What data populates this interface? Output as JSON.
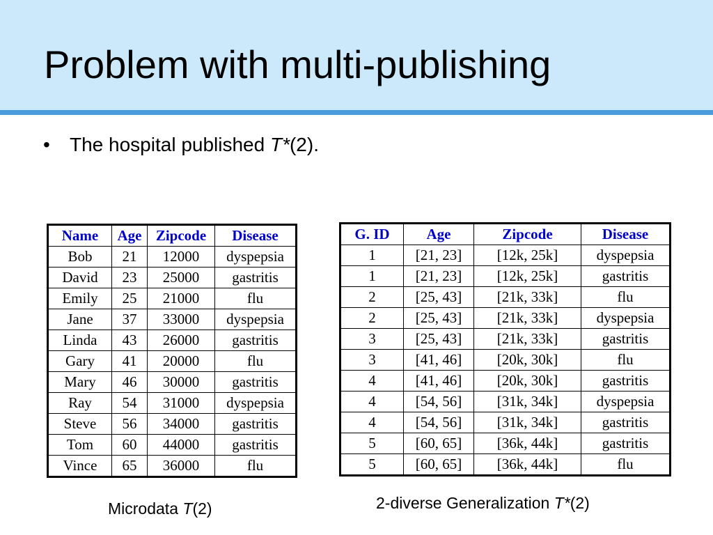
{
  "slide": {
    "title": "Problem with multi-publishing",
    "bullet": {
      "marker": "•",
      "prefix": "The hospital published ",
      "em": "T*",
      "suffix": "(2)."
    }
  },
  "left_table": {
    "headers": [
      "Name",
      "Age",
      "Zipcode",
      "Disease"
    ],
    "rows": [
      [
        "Bob",
        "21",
        "12000",
        "dyspepsia"
      ],
      [
        "David",
        "23",
        "25000",
        "gastritis"
      ],
      [
        "Emily",
        "25",
        "21000",
        "flu"
      ],
      [
        "Jane",
        "37",
        "33000",
        "dyspepsia"
      ],
      [
        "Linda",
        "43",
        "26000",
        "gastritis"
      ],
      [
        "Gary",
        "41",
        "20000",
        "flu"
      ],
      [
        "Mary",
        "46",
        "30000",
        "gastritis"
      ],
      [
        "Ray",
        "54",
        "31000",
        "dyspepsia"
      ],
      [
        "Steve",
        "56",
        "34000",
        "gastritis"
      ],
      [
        "Tom",
        "60",
        "44000",
        "gastritis"
      ],
      [
        "Vince",
        "65",
        "36000",
        "flu"
      ]
    ],
    "caption": {
      "prefix": "Microdata ",
      "em": "T",
      "suffix": "(2)"
    }
  },
  "right_table": {
    "headers": [
      "G. ID",
      "Age",
      "Zipcode",
      "Disease"
    ],
    "rows": [
      [
        "1",
        "[21, 23]",
        "[12k, 25k]",
        "dyspepsia"
      ],
      [
        "1",
        "[21, 23]",
        "[12k, 25k]",
        "gastritis"
      ],
      [
        "2",
        "[25, 43]",
        "[21k, 33k]",
        "flu"
      ],
      [
        "2",
        "[25, 43]",
        "[21k, 33k]",
        "dyspepsia"
      ],
      [
        "3",
        "[25, 43]",
        "[21k, 33k]",
        "gastritis"
      ],
      [
        "3",
        "[41, 46]",
        "[20k, 30k]",
        "flu"
      ],
      [
        "4",
        "[41, 46]",
        "[20k, 30k]",
        "gastritis"
      ],
      [
        "4",
        "[54, 56]",
        "[31k, 34k]",
        "dyspepsia"
      ],
      [
        "4",
        "[54, 56]",
        "[31k, 34k]",
        "gastritis"
      ],
      [
        "5",
        "[60, 65]",
        "[36k, 44k]",
        "gastritis"
      ],
      [
        "5",
        "[60, 65]",
        "[36k, 44k]",
        "flu"
      ]
    ],
    "caption": {
      "prefix": "2-diverse Generalization ",
      "em": "T*",
      "suffix": "(2)"
    }
  },
  "colors": {
    "header_band": "#cce8fb",
    "header_rule": "#4a9bdc",
    "table_header_text": "#0000cc"
  }
}
